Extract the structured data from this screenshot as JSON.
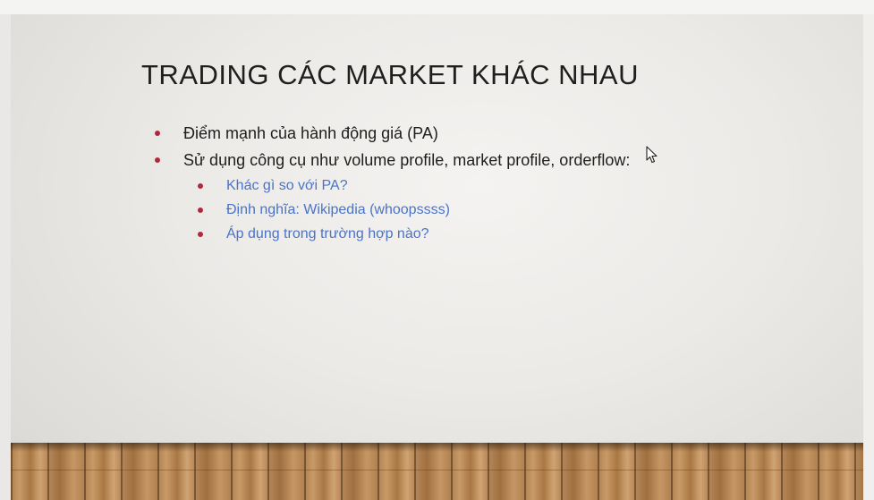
{
  "slide": {
    "title": "TRADING CÁC MARKET KHÁC NHAU",
    "bullets": [
      {
        "level": 1,
        "text": "Điểm mạnh của hành động giá (PA)"
      },
      {
        "level": 1,
        "text": "Sử dụng công cụ như volume profile, market profile, orderflow:"
      },
      {
        "level": 2,
        "text": "Khác gì so với PA?"
      },
      {
        "level": 2,
        "text": "Định nghĩa: Wikipedia (whoopssss)"
      },
      {
        "level": 2,
        "text": "Áp dụng trong trường hợp nào?"
      }
    ]
  },
  "colors": {
    "title_text": "#1f1f1f",
    "body_text": "#1e1e1e",
    "sub_bullet_text": "#4a73c8",
    "bullet_marker": "#b1283a",
    "floor_wood": "#c39563"
  },
  "icons": {
    "cursor": "mouse-pointer-icon"
  }
}
